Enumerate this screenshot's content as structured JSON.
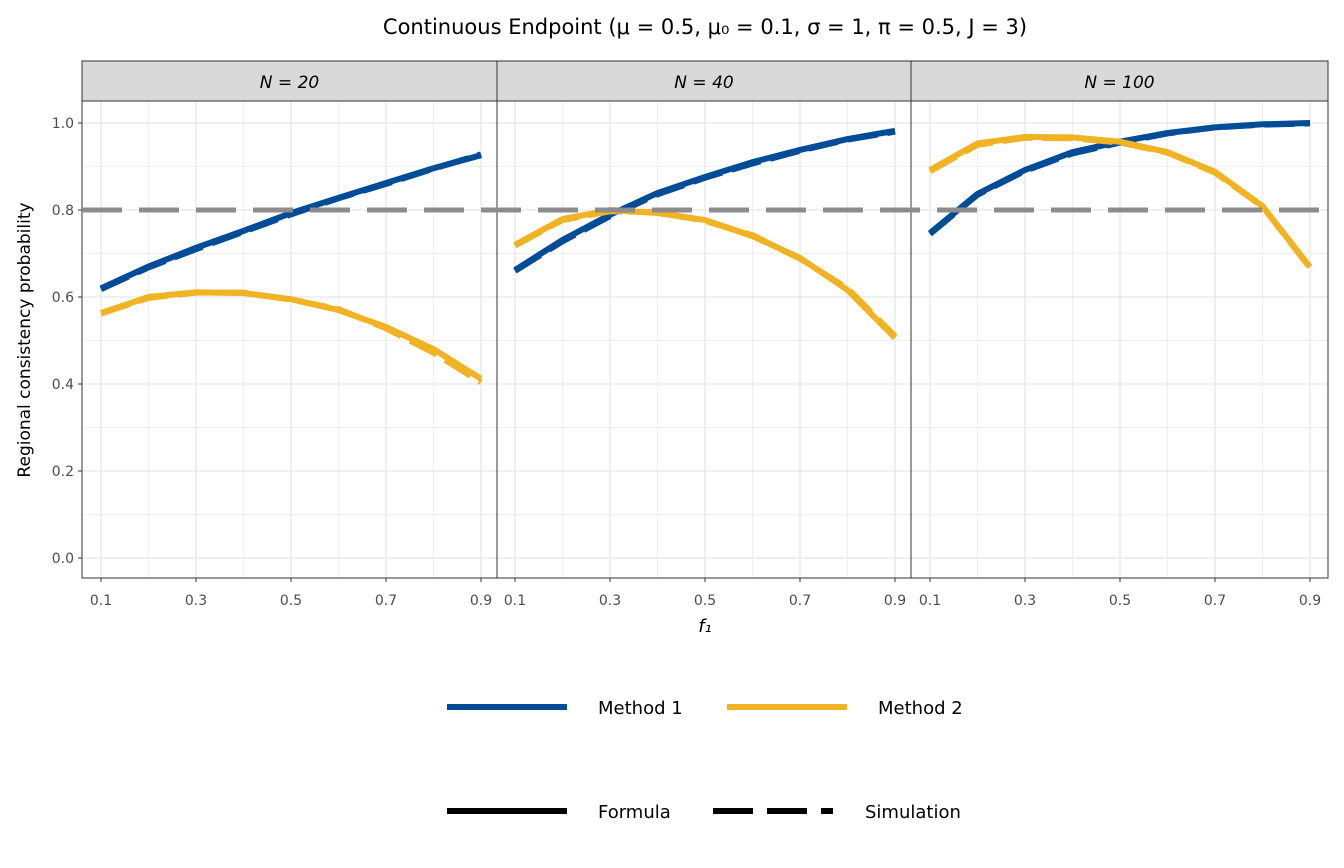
{
  "chart_data": {
    "type": "line",
    "title": "Continuous Endpoint  (μ = 0.5, μ₀ = 0.1, σ = 1, π = 0.5, J = 3)",
    "xlabel": "f₁",
    "ylabel": "Regional consistency probability",
    "xlim": [
      0.06,
      0.94
    ],
    "ylim": [
      -0.046,
      1.05
    ],
    "x_ticks": [
      "0.1",
      "0.3",
      "0.5",
      "0.7",
      "0.9"
    ],
    "y_ticks": [
      "0.0",
      "0.2",
      "0.4",
      "0.6",
      "0.8",
      "1.0"
    ],
    "grid": true,
    "reference_line": {
      "y": 0.8,
      "color": "#8c8c8c",
      "style": "dashed"
    },
    "x": [
      0.1,
      0.2,
      0.3,
      0.4,
      0.5,
      0.6,
      0.7,
      0.8,
      0.9
    ],
    "colors": {
      "Method 1": "#004c97",
      "Method 2": "#f0b323"
    },
    "panels": [
      {
        "label": "N = 20",
        "series": [
          {
            "name": "Method 1",
            "type": "Formula",
            "values": [
              0.62,
              0.67,
              0.713,
              0.752,
              0.793,
              0.828,
              0.862,
              0.896,
              0.926
            ]
          },
          {
            "name": "Method 1",
            "type": "Simulation",
            "values": [
              0.618,
              0.668,
              0.71,
              0.75,
              0.79,
              0.827,
              0.86,
              0.895,
              0.928
            ]
          },
          {
            "name": "Method 2",
            "type": "Formula",
            "values": [
              0.563,
              0.6,
              0.611,
              0.609,
              0.595,
              0.57,
              0.531,
              0.48,
              0.412
            ]
          },
          {
            "name": "Method 2",
            "type": "Simulation",
            "values": [
              0.562,
              0.598,
              0.61,
              0.61,
              0.594,
              0.572,
              0.528,
              0.472,
              0.404
            ]
          }
        ]
      },
      {
        "label": "N = 40",
        "series": [
          {
            "name": "Method 1",
            "type": "Formula",
            "values": [
              0.662,
              0.731,
              0.789,
              0.839,
              0.876,
              0.91,
              0.938,
              0.963,
              0.982
            ]
          },
          {
            "name": "Method 1",
            "type": "Simulation",
            "values": [
              0.66,
              0.728,
              0.786,
              0.836,
              0.874,
              0.907,
              0.936,
              0.962,
              0.98
            ]
          },
          {
            "name": "Method 2",
            "type": "Formula",
            "values": [
              0.72,
              0.779,
              0.8,
              0.793,
              0.777,
              0.74,
              0.69,
              0.616,
              0.506
            ]
          },
          {
            "name": "Method 2",
            "type": "Simulation",
            "values": [
              0.718,
              0.777,
              0.797,
              0.795,
              0.775,
              0.742,
              0.688,
              0.62,
              0.51
            ]
          }
        ]
      },
      {
        "label": "N = 100",
        "series": [
          {
            "name": "Method 1",
            "type": "Formula",
            "values": [
              0.747,
              0.837,
              0.892,
              0.933,
              0.957,
              0.977,
              0.99,
              0.997,
              1.0
            ]
          },
          {
            "name": "Method 1",
            "type": "Simulation",
            "values": [
              0.745,
              0.835,
              0.89,
              0.93,
              0.955,
              0.976,
              0.99,
              0.996,
              0.999
            ]
          },
          {
            "name": "Method 2",
            "type": "Formula",
            "values": [
              0.892,
              0.953,
              0.968,
              0.967,
              0.957,
              0.933,
              0.888,
              0.809,
              0.669
            ]
          },
          {
            "name": "Method 2",
            "type": "Simulation",
            "values": [
              0.889,
              0.95,
              0.966,
              0.965,
              0.955,
              0.932,
              0.886,
              0.808,
              0.667
            ]
          }
        ]
      }
    ],
    "legend": {
      "placement": "bottom",
      "colour_entries": [
        "Method 1",
        "Method 2"
      ],
      "linetype_entries": [
        "Formula",
        "Simulation"
      ]
    }
  }
}
